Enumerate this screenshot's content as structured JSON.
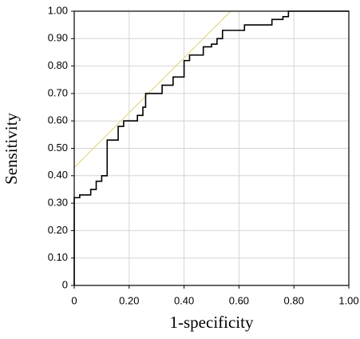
{
  "chart_data": {
    "type": "line",
    "x_label": "1-specificity",
    "y_label": "Sensitivity",
    "xlim": [
      0,
      1
    ],
    "ylim": [
      0,
      1
    ],
    "xticks": [
      0,
      {
        "value": 0.2,
        "label": "0.20"
      },
      {
        "value": 0.4,
        "label": "0.40"
      },
      {
        "value": 0.6,
        "label": "0.60"
      },
      {
        "value": 0.8,
        "label": "0.80"
      },
      {
        "value": 1,
        "label": "1.00"
      }
    ],
    "yticks": [
      0,
      {
        "value": 0.1,
        "label": "0.10"
      },
      {
        "value": 0.2,
        "label": "0.20"
      },
      {
        "value": 0.3,
        "label": "0.30"
      },
      {
        "value": 0.4,
        "label": "0.40"
      },
      {
        "value": 0.5,
        "label": "0.50"
      },
      {
        "value": 0.6,
        "label": "0.60"
      },
      {
        "value": 0.7,
        "label": "0.70"
      },
      {
        "value": 0.8,
        "label": "0.80"
      },
      {
        "value": 0.9,
        "label": "0.90"
      },
      {
        "value": 1,
        "label": "1.00"
      }
    ],
    "grid": true,
    "series": [
      {
        "color": "#000000",
        "x": [
          0,
          0,
          0.02,
          0.02,
          0.06,
          0.06,
          0.08,
          0.08,
          0.1,
          0.1,
          0.12,
          0.12,
          0.16,
          0.16,
          0.18,
          0.18,
          0.23,
          0.23,
          0.25,
          0.25,
          0.26,
          0.26,
          0.32,
          0.32,
          0.36,
          0.36,
          0.4,
          0.4,
          0.42,
          0.42,
          0.47,
          0.47,
          0.5,
          0.5,
          0.52,
          0.52,
          0.54,
          0.54,
          0.62,
          0.62,
          0.72,
          0.72,
          0.76,
          0.76,
          0.78,
          0.78,
          1.0
        ],
        "values": [
          0,
          0.32,
          0.32,
          0.33,
          0.33,
          0.35,
          0.35,
          0.38,
          0.38,
          0.4,
          0.4,
          0.53,
          0.53,
          0.58,
          0.58,
          0.6,
          0.6,
          0.62,
          0.62,
          0.65,
          0.65,
          0.7,
          0.7,
          0.73,
          0.73,
          0.76,
          0.76,
          0.82,
          0.82,
          0.84,
          0.84,
          0.87,
          0.87,
          0.88,
          0.88,
          0.9,
          0.9,
          0.93,
          0.93,
          0.95,
          0.95,
          0.97,
          0.97,
          0.98,
          0.98,
          1.0,
          1.0
        ]
      },
      {
        "color": "#e6dc8c",
        "x": [
          0,
          0.57
        ],
        "values": [
          0.43,
          1.0
        ]
      }
    ]
  }
}
